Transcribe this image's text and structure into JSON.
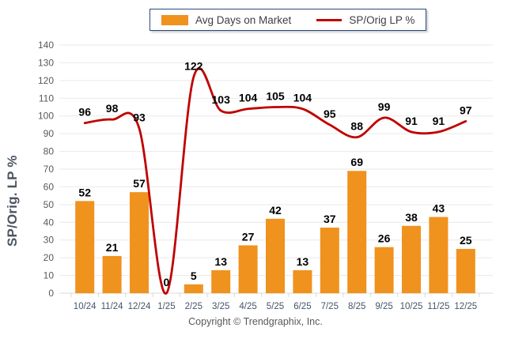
{
  "legend": {
    "items": [
      {
        "label": "Avg Days on Market",
        "type": "bar",
        "color": "#f0921e"
      },
      {
        "label": "SP/Orig LP %",
        "type": "line",
        "color": "#c00000"
      }
    ]
  },
  "footer": {
    "copyright": "Copyright © Trendgraphix, Inc."
  },
  "chart_data": {
    "type": "combo",
    "categories": [
      "10/24",
      "11/24",
      "12/24",
      "1/25",
      "2/25",
      "3/25",
      "4/25",
      "5/25",
      "6/25",
      "7/25",
      "8/25",
      "9/25",
      "10/25",
      "11/25",
      "12/25"
    ],
    "series": [
      {
        "name": "Avg Days on Market",
        "type": "bar",
        "color": "#f0921e",
        "values": [
          52,
          21,
          57,
          0,
          5,
          13,
          27,
          42,
          13,
          37,
          69,
          26,
          38,
          43,
          25
        ]
      },
      {
        "name": "SP/Orig LP %",
        "type": "line",
        "color": "#c00000",
        "values": [
          96,
          98,
          93,
          0,
          122,
          103,
          104,
          105,
          104,
          95,
          88,
          99,
          91,
          91,
          97
        ]
      }
    ],
    "title": "",
    "xlabel": "",
    "ylabel": "SP/Orig. LP %",
    "ylim": [
      0,
      140
    ],
    "ytick_step": 10,
    "grid": "horizontal",
    "legend_position": "top-center",
    "data_labels": true
  },
  "colors": {
    "grid": "#e9e9e9",
    "axis": "#d9d9d9",
    "y_tick_text": "#595959",
    "x_tick_text": "#44546a",
    "data_label": "#000000",
    "legend_border": "#2a4b7c",
    "footer_text": "#595959"
  }
}
